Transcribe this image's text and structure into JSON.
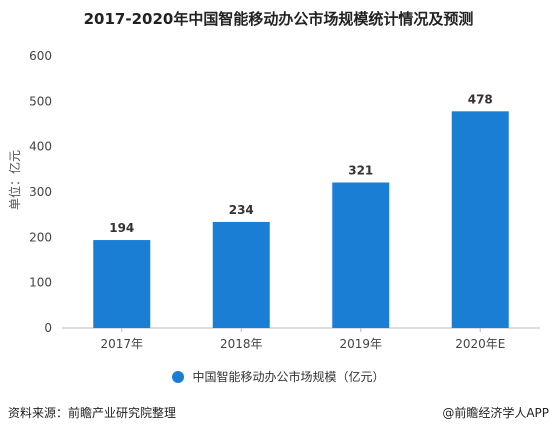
{
  "chart_data": {
    "type": "bar",
    "title": "2017-2020年中国智能移动办公市场规模统计情况及预测",
    "ylabel": "单位：亿元",
    "categories": [
      "2017年",
      "2018年",
      "2019年",
      "2020年E"
    ],
    "series": [
      {
        "name": "中国智能移动办公市场规模（亿元）",
        "values": [
          194,
          234,
          321,
          478
        ]
      }
    ],
    "ylim": [
      0,
      600
    ],
    "yticks": [
      0,
      100,
      200,
      300,
      400,
      500,
      600
    ],
    "grid": false,
    "legend_position": "bottom",
    "bar_color": "#1a7ed4"
  },
  "footer": {
    "source": "资料来源：前瞻产业研究院整理",
    "brand": "@前瞻经济学人APP"
  }
}
